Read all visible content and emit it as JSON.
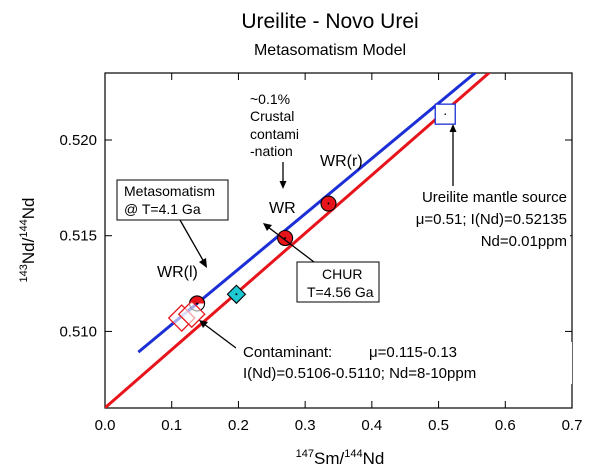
{
  "chart_data": {
    "type": "line",
    "title": "Ureilite - Novo Urei",
    "subtitle": "Metasomatism Model",
    "xlabel": {
      "sup": "147",
      "main": "Sm/",
      "sup2": "144",
      "tail": "Nd"
    },
    "ylabel": {
      "sup": "143",
      "main": "Nd/",
      "sup2": "144",
      "tail": "Nd"
    },
    "xlim": [
      0.0,
      0.7
    ],
    "ylim": [
      0.506,
      0.5235
    ],
    "xticks": [
      0.0,
      0.1,
      0.2,
      0.3,
      0.4,
      0.5,
      0.6,
      0.7
    ],
    "xtick_labels": [
      "0.0",
      "0.1",
      "0.2",
      "0.3",
      "0.4",
      "0.5",
      "0.6",
      "0.7"
    ],
    "yticks": [
      0.51,
      0.515,
      0.52
    ],
    "ytick_labels": [
      "0.510",
      "0.515",
      "0.520"
    ],
    "grid": false,
    "series": [
      {
        "name": "CHUR",
        "color": "#e8141b",
        "x": [
          0.0,
          0.58
        ],
        "y": [
          0.50601,
          0.52364
        ]
      },
      {
        "name": "Metasomatism",
        "color": "#1c2fd6",
        "x": [
          0.05,
          0.56
        ],
        "y": [
          0.50892,
          0.52366
        ]
      }
    ],
    "points": [
      {
        "key": "wr_l",
        "x": 0.138,
        "y": 0.51146,
        "marker": "circle",
        "fill": "#e8141b",
        "half": true
      },
      {
        "key": "wr",
        "x": 0.27,
        "y": 0.51488,
        "marker": "circle",
        "fill": "#e8141b",
        "half": false
      },
      {
        "key": "wr_r",
        "x": 0.335,
        "y": 0.51668,
        "marker": "circle",
        "fill": "#e8141b",
        "half": false
      },
      {
        "key": "chur",
        "x": 0.197,
        "y": 0.51194,
        "marker": "diamond",
        "fill": "#1ec8d2",
        "half": false
      },
      {
        "key": "mantle_source",
        "x": 0.51,
        "y": 0.52135,
        "marker": "square",
        "fill": "none",
        "stroke": "#1c2fd6"
      },
      {
        "key": "contaminant_1",
        "x": 0.115,
        "y": 0.5107,
        "marker": "diamond",
        "fill": "none",
        "stroke": "#e8141b"
      },
      {
        "key": "contaminant_2",
        "x": 0.13,
        "y": 0.5109,
        "marker": "diamond",
        "fill": "none",
        "stroke": "#e8141b"
      }
    ],
    "annotations": {
      "crustal": [
        "~0.1%",
        "Crustal",
        "contami",
        "-nation"
      ],
      "wr_r": "WR(r)",
      "wr": "WR",
      "wr_l": "WR(l)",
      "metasomatism": [
        "Metasomatism",
        "@ T=4.1 Ga"
      ],
      "chur": [
        "CHUR",
        "T=4.56 Ga"
      ],
      "mantle": [
        "Ureilite mantle source",
        "μ=0.51; I(Nd)=0.52135",
        "Nd=0.01ppm"
      ],
      "contaminant_line1_a": "Contaminant:",
      "contaminant_line1_b": "μ=0.115-0.13",
      "contaminant_line2": "I(Nd)=0.5106-0.5110; Nd=8-10ppm"
    }
  }
}
